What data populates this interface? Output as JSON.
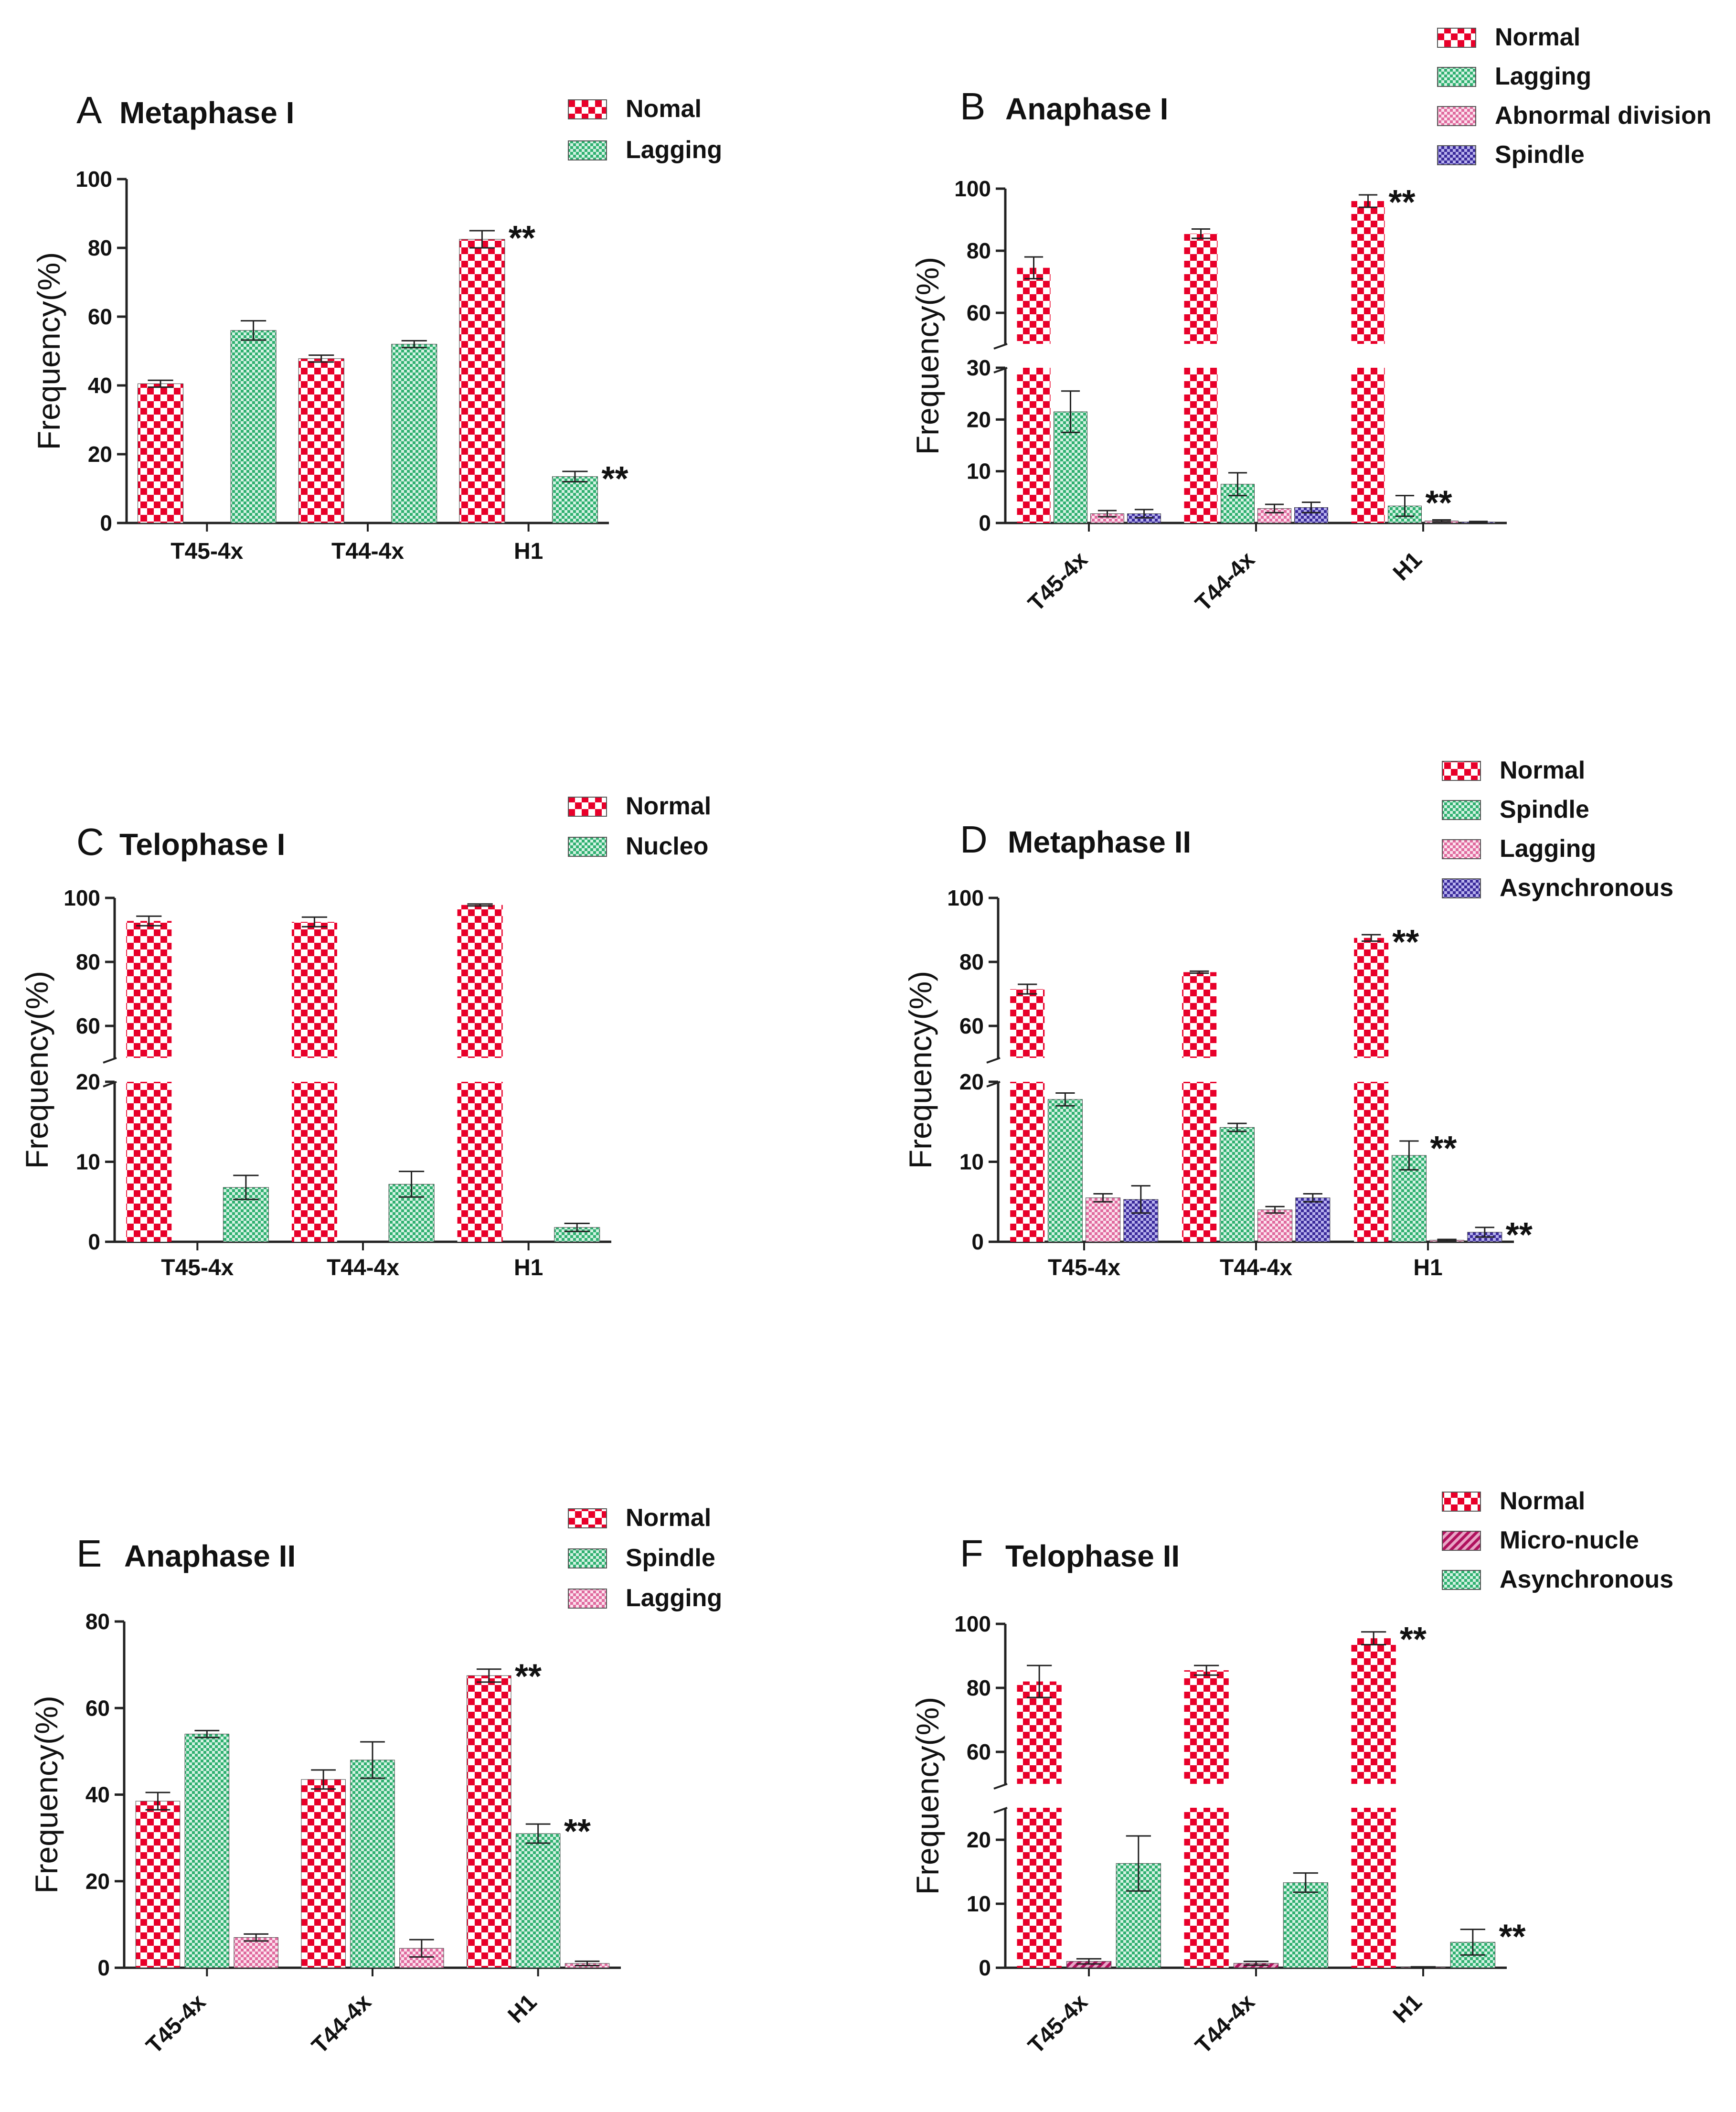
{
  "chart_data": [
    {
      "type": "bar",
      "letter": "A",
      "title": "Metaphase I",
      "ylabel": "Frequency(%)",
      "xlabel": "",
      "categories": [
        "T45-4x",
        "T44-4x",
        "H1"
      ],
      "rotate_categories": false,
      "ylim": [
        0,
        100
      ],
      "yticks": [
        0,
        20,
        40,
        60,
        80,
        100
      ],
      "axis_break": null,
      "legend_position": "top-right",
      "series": [
        {
          "name": "Nomal",
          "pattern": "normal",
          "values": [
            40.5,
            47.8,
            82.5
          ],
          "errors": [
            1.0,
            1.0,
            2.5
          ],
          "sig": [
            "",
            "",
            "**"
          ]
        },
        {
          "name": "Lagging",
          "pattern": "green",
          "values": [
            56.0,
            52.0,
            13.5
          ],
          "errors": [
            2.8,
            1.0,
            1.5
          ],
          "sig": [
            "",
            "",
            "**"
          ]
        }
      ]
    },
    {
      "type": "bar",
      "letter": "B",
      "title": "Anaphase I",
      "ylabel": "Frequency(%)",
      "xlabel": "",
      "categories": [
        "T45-4x",
        "T44-4x",
        "H1"
      ],
      "rotate_categories": true,
      "ylim": [
        0,
        100
      ],
      "yticks": [
        0,
        10,
        20,
        30,
        60,
        80,
        100
      ],
      "axis_break": [
        30,
        50
      ],
      "legend_position": "top-right",
      "series": [
        {
          "name": "Normal",
          "pattern": "normal",
          "values": [
            74.5,
            85.5,
            96.0
          ],
          "errors": [
            3.5,
            1.5,
            2.0
          ],
          "sig": [
            "",
            "",
            "**"
          ]
        },
        {
          "name": "Lagging",
          "pattern": "green",
          "values": [
            21.5,
            7.5,
            3.3
          ],
          "errors": [
            4.0,
            2.2,
            2.0
          ],
          "sig": [
            "",
            "",
            "**"
          ]
        },
        {
          "name": "Abnormal division",
          "pattern": "pink",
          "values": [
            1.8,
            2.8,
            0.4
          ],
          "errors": [
            0.6,
            0.8,
            0.2
          ],
          "sig": [
            "",
            "",
            ""
          ]
        },
        {
          "name": "Spindle",
          "pattern": "purple",
          "values": [
            1.8,
            3.0,
            0.2
          ],
          "errors": [
            0.8,
            1.0,
            0.1
          ],
          "sig": [
            "",
            "",
            ""
          ]
        }
      ]
    },
    {
      "type": "bar",
      "letter": "C",
      "title": "Telophase I",
      "ylabel": "Frequency(%)",
      "xlabel": "",
      "categories": [
        "T45-4x",
        "T44-4x",
        "H1"
      ],
      "rotate_categories": false,
      "ylim": [
        0,
        100
      ],
      "yticks": [
        0,
        10,
        20,
        60,
        80,
        100
      ],
      "axis_break": [
        20,
        50
      ],
      "legend_position": "top-right",
      "series": [
        {
          "name": "Normal",
          "pattern": "normal",
          "values": [
            92.8,
            92.5,
            97.8
          ],
          "errors": [
            1.5,
            1.5,
            0.3
          ],
          "sig": [
            "",
            "",
            ""
          ]
        },
        {
          "name": "Nucleo",
          "pattern": "green",
          "values": [
            6.8,
            7.2,
            1.8
          ],
          "errors": [
            1.5,
            1.6,
            0.5
          ],
          "sig": [
            "",
            "",
            ""
          ]
        }
      ]
    },
    {
      "type": "bar",
      "letter": "D",
      "title": "Metaphase II",
      "ylabel": "Frequency(%)",
      "xlabel": "",
      "categories": [
        "T45-4x",
        "T44-4x",
        "H1"
      ],
      "rotate_categories": false,
      "ylim": [
        0,
        100
      ],
      "yticks": [
        0,
        10,
        20,
        60,
        80,
        100
      ],
      "axis_break": [
        20,
        50
      ],
      "legend_position": "top-right",
      "series": [
        {
          "name": "Normal",
          "pattern": "normal",
          "values": [
            71.5,
            76.8,
            87.5
          ],
          "errors": [
            1.5,
            0.3,
            1.0
          ],
          "sig": [
            "",
            "",
            "**"
          ]
        },
        {
          "name": "Spindle",
          "pattern": "green",
          "values": [
            17.8,
            14.3,
            10.8
          ],
          "errors": [
            0.8,
            0.5,
            1.8
          ],
          "sig": [
            "",
            "",
            "**"
          ]
        },
        {
          "name": "Lagging",
          "pattern": "pink",
          "values": [
            5.5,
            4.0,
            0.2
          ],
          "errors": [
            0.5,
            0.4,
            0.1
          ],
          "sig": [
            "",
            "",
            ""
          ]
        },
        {
          "name": "Asynchronous",
          "pattern": "purple",
          "values": [
            5.3,
            5.5,
            1.2
          ],
          "errors": [
            1.7,
            0.5,
            0.6
          ],
          "sig": [
            "",
            "",
            "**"
          ]
        }
      ]
    },
    {
      "type": "bar",
      "letter": "E",
      "title": "Anaphase II",
      "ylabel": "Frequency(%)",
      "xlabel": "",
      "categories": [
        "T45-4x",
        "T44-4x",
        "H1"
      ],
      "rotate_categories": true,
      "ylim": [
        0,
        80
      ],
      "yticks": [
        0,
        20,
        40,
        60,
        80
      ],
      "axis_break": null,
      "legend_position": "top-right",
      "series": [
        {
          "name": "Normal",
          "pattern": "normal",
          "values": [
            38.5,
            43.5,
            67.5
          ],
          "errors": [
            2.0,
            2.2,
            1.5
          ],
          "sig": [
            "",
            "",
            "**"
          ]
        },
        {
          "name": "Spindle",
          "pattern": "green",
          "values": [
            54.0,
            48.0,
            31.0
          ],
          "errors": [
            0.8,
            4.2,
            2.2
          ],
          "sig": [
            "",
            "",
            "**"
          ]
        },
        {
          "name": "Lagging",
          "pattern": "pink",
          "values": [
            7.0,
            4.5,
            1.0
          ],
          "errors": [
            0.8,
            2.0,
            0.5
          ],
          "sig": [
            "",
            "",
            ""
          ]
        }
      ]
    },
    {
      "type": "bar",
      "letter": "F",
      "title": "Telophase II",
      "ylabel": "Frequency(%)",
      "xlabel": "",
      "categories": [
        "T45-4x",
        "T44-4x",
        "H1"
      ],
      "rotate_categories": true,
      "ylim": [
        0,
        100
      ],
      "yticks": [
        0,
        10,
        20,
        60,
        80,
        100
      ],
      "axis_break": [
        25,
        50
      ],
      "legend_position": "top-right",
      "series": [
        {
          "name": "Normal",
          "pattern": "normal",
          "values": [
            82.0,
            85.5,
            95.5
          ],
          "errors": [
            5.0,
            1.5,
            2.0
          ],
          "sig": [
            "",
            "",
            "**"
          ]
        },
        {
          "name": "Micro-nucle",
          "pattern": "stripe",
          "values": [
            1.0,
            0.7,
            0.1
          ],
          "errors": [
            0.4,
            0.3,
            0.05
          ],
          "sig": [
            "",
            "",
            ""
          ]
        },
        {
          "name": "Asynchronous",
          "pattern": "green",
          "values": [
            16.3,
            13.3,
            4.0
          ],
          "errors": [
            4.3,
            1.5,
            2.0
          ],
          "sig": [
            "",
            "",
            "**"
          ]
        }
      ]
    }
  ]
}
